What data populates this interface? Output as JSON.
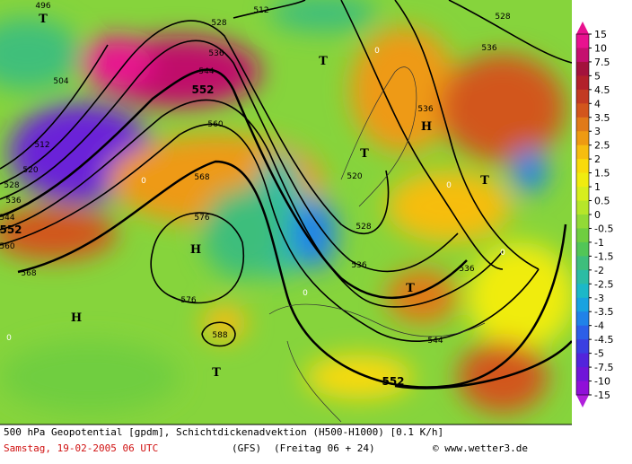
{
  "map": {
    "contour_labels": [
      "496",
      "512",
      "528",
      "536",
      "544",
      "552",
      "560",
      "504",
      "512",
      "520",
      "528",
      "536",
      "544",
      "552",
      "560",
      "568",
      "568",
      "576",
      "576",
      "588",
      "520",
      "528",
      "536",
      "536",
      "536",
      "552",
      "544",
      "536",
      "528",
      "0",
      "0",
      "0",
      "0",
      "0",
      "0"
    ],
    "pressure_labels": [
      "T",
      "T",
      "T",
      "T",
      "T",
      "T",
      "H",
      "H",
      "H"
    ],
    "legend": [
      {
        "label": "15",
        "color": "#e8128f"
      },
      {
        "label": "10",
        "color": "#c5106e"
      },
      {
        "label": "7.5",
        "color": "#a3123c"
      },
      {
        "label": "5",
        "color": "#b2202a"
      },
      {
        "label": "4.5",
        "color": "#c23a22"
      },
      {
        "label": "4",
        "color": "#d2561c"
      },
      {
        "label": "3.5",
        "color": "#e07a18"
      },
      {
        "label": "3",
        "color": "#ee9a12"
      },
      {
        "label": "2.5",
        "color": "#f6bd10"
      },
      {
        "label": "2",
        "color": "#f8da0c"
      },
      {
        "label": "1.5",
        "color": "#f0ec10"
      },
      {
        "label": "1",
        "color": "#d7ee1e"
      },
      {
        "label": "0.5",
        "color": "#b6e62a"
      },
      {
        "label": "0",
        "color": "#92da36"
      },
      {
        "label": "-0.5",
        "color": "#6fce40"
      },
      {
        "label": "-1",
        "color": "#52c657"
      },
      {
        "label": "-1.5",
        "color": "#3ebe7c"
      },
      {
        "label": "-2",
        "color": "#2cbca4"
      },
      {
        "label": "-2.5",
        "color": "#1cb8c8"
      },
      {
        "label": "-3",
        "color": "#18a2e0"
      },
      {
        "label": "-3.5",
        "color": "#2082e8"
      },
      {
        "label": "-4",
        "color": "#2c5fe8"
      },
      {
        "label": "-4.5",
        "color": "#3a3fe2"
      },
      {
        "label": "-5",
        "color": "#5224dc"
      },
      {
        "label": "-7.5",
        "color": "#7016d8"
      },
      {
        "label": "-10",
        "color": "#9010d8"
      },
      {
        "label": "-15",
        "color": "#b020dc"
      }
    ]
  },
  "footer": {
    "title": "500 hPa Geopotential [gpdm], Schichtdickenadvektion (H500-H1000) [0.1 K/h]",
    "date": "Samstag, 19-02-2005  06 UTC",
    "model": "(GFS)",
    "run": "(Freitag 06 + 24)",
    "credit": "© www.wetter3.de"
  }
}
